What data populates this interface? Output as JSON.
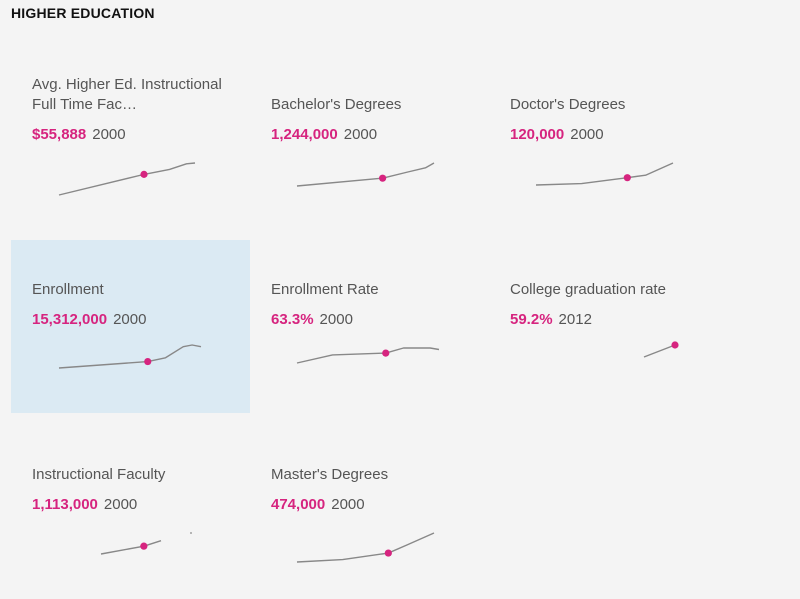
{
  "section": {
    "title": "HIGHER EDUCATION"
  },
  "colors": {
    "accent": "#d6247f",
    "line": "#888888",
    "selected_bg": "#dbeaf3"
  },
  "cards": [
    {
      "title": "Avg. Higher Ed. Instructional Full Time Fac…",
      "value": "$55,888",
      "year": "2000",
      "selected": false
    },
    {
      "title": "Bachelor's Degrees",
      "value": "1,244,000",
      "year": "2000",
      "selected": false
    },
    {
      "title": "Doctor's Degrees",
      "value": "120,000",
      "year": "2000",
      "selected": false
    },
    {
      "title": "Enrollment",
      "value": "15,312,000",
      "year": "2000",
      "selected": true
    },
    {
      "title": "Enrollment Rate",
      "value": "63.3%",
      "year": "2000",
      "selected": false
    },
    {
      "title": "College graduation rate",
      "value": "59.2%",
      "year": "2012",
      "selected": false
    },
    {
      "title": "Instructional Faculty",
      "value": "1,113,000",
      "year": "2000",
      "selected": false
    },
    {
      "title": "Master's Degrees",
      "value": "474,000",
      "year": "2000",
      "selected": false
    }
  ],
  "chart_data": [
    {
      "type": "line",
      "title": "Avg. Higher Ed. Instructional Full Time Fac…",
      "highlight": {
        "x": 2000,
        "y": 55888
      },
      "series": [
        {
          "x": [
            1990,
            2000,
            2003,
            2005,
            2006
          ],
          "y": [
            43000,
            55888,
            59000,
            62500,
            63000
          ],
          "gaps": []
        }
      ]
    },
    {
      "type": "line",
      "title": "Bachelor's Degrees",
      "highlight": {
        "x": 2000,
        "y": 1244000
      },
      "series": [
        {
          "x": [
            1990,
            2000,
            2003,
            2005,
            2006
          ],
          "y": [
            1050000,
            1244000,
            1400000,
            1500000,
            1620000
          ],
          "gaps": []
        }
      ]
    },
    {
      "type": "line",
      "title": "Doctor's Degrees",
      "highlight": {
        "x": 2000,
        "y": 120000
      },
      "series": [
        {
          "x": [
            1990,
            1995,
            2000,
            2002,
            2005
          ],
          "y": [
            105000,
            108000,
            120000,
            125000,
            150000
          ],
          "gaps": []
        }
      ]
    },
    {
      "type": "line",
      "title": "Enrollment",
      "highlight": {
        "x": 2000,
        "y": 15312000
      },
      "series": [
        {
          "x": [
            1990,
            2000,
            2002,
            2004,
            2005,
            2006
          ],
          "y": [
            13800000,
            15312000,
            16200000,
            18800000,
            19200000,
            18800000
          ],
          "gaps": []
        }
      ]
    },
    {
      "type": "line",
      "title": "Enrollment Rate",
      "highlight": {
        "x": 2000,
        "y": 63.3
      },
      "series": [
        {
          "x": [
            1990,
            1994,
            2000,
            2002,
            2005,
            2006
          ],
          "y": [
            60.0,
            62.7,
            63.3,
            65.0,
            65.0,
            64.5
          ],
          "gaps": []
        }
      ]
    },
    {
      "type": "line",
      "title": "College graduation rate",
      "highlight": {
        "x": 2012,
        "y": 59.2
      },
      "series": [
        {
          "x": [
            2009,
            2012
          ],
          "y": [
            58.9,
            59.2
          ],
          "gaps": []
        }
      ]
    },
    {
      "type": "line",
      "title": "Instructional Faculty",
      "highlight": {
        "x": 2000,
        "y": 1113000
      },
      "series": [
        {
          "x": [
            1990,
            2000,
            2004,
            2010,
            2011
          ],
          "y": [
            930000,
            1113000,
            1240000,
            null,
            1420000
          ],
          "gaps": [
            3
          ]
        }
      ]
    },
    {
      "type": "line",
      "title": "Master's Degrees",
      "highlight": {
        "x": 2000,
        "y": 474000
      },
      "series": [
        {
          "x": [
            1990,
            1995,
            2000,
            2002,
            2005
          ],
          "y": [
            400000,
            420000,
            474000,
            540000,
            640000
          ],
          "gaps": []
        }
      ]
    }
  ]
}
